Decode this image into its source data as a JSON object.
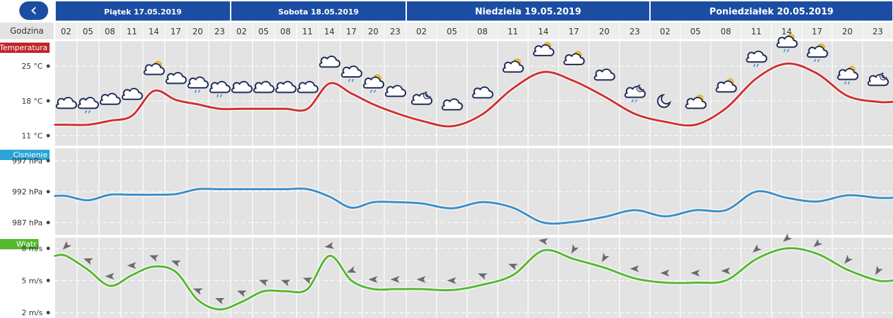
{
  "header": {
    "back_label": "‹",
    "hour_header": "Godzina"
  },
  "days": [
    {
      "label": "Piątek 17.05.2019"
    },
    {
      "label": "Sobota 18.05.2019"
    },
    {
      "label": "Niedziela 19.05.2019"
    },
    {
      "label": "Poniedziałek 20.05.2019"
    }
  ],
  "hours": [
    "02",
    "05",
    "08",
    "11",
    "14",
    "17",
    "20",
    "23"
  ],
  "colors": {
    "day_header": "#1b4ea3",
    "back_button": "#1b4ea3",
    "panel_bg": "#e3e3e3",
    "temperature": "#d03030",
    "pressure": "#3a8fc8",
    "wind": "#55b82e",
    "temp_label": "#c0262a",
    "pressure_label": "#2aa3d8",
    "wind_label": "#55b82e"
  },
  "panels": {
    "temperature": {
      "label": "Temperatura",
      "ticks": [
        "25 °C",
        "18 °C",
        "11 °C"
      ]
    },
    "pressure": {
      "label": "Cisnienie",
      "ticks": [
        "997 hPa",
        "992 hPa",
        "987 hPa"
      ]
    },
    "wind": {
      "label": "Wiatr",
      "ticks": [
        "8 m/s",
        "5 m/s",
        "2 m/s"
      ]
    }
  },
  "chart_data": [
    {
      "type": "line",
      "title": "Temperatura",
      "ylim": [
        9,
        30
      ],
      "ticks": [
        11,
        18,
        25
      ],
      "x": [
        "Pt 02",
        "Pt 05",
        "Pt 08",
        "Pt 11",
        "Pt 14",
        "Pt 17",
        "Pt 20",
        "Pt 23",
        "So 02",
        "So 05",
        "So 08",
        "So 11",
        "So 14",
        "So 17",
        "So 20",
        "So 23",
        "Nd 02",
        "Nd 05",
        "Nd 08",
        "Nd 11",
        "Nd 14",
        "Nd 17",
        "Nd 20",
        "Nd 23",
        "Pn 02",
        "Pn 05",
        "Pn 08",
        "Pn 11",
        "Pn 14",
        "Pn 17",
        "Pn 20",
        "Pn 23"
      ],
      "values": [
        13.2,
        13.2,
        14.0,
        15.0,
        20.0,
        18.2,
        17.3,
        16.4,
        16.4,
        16.4,
        16.4,
        16.4,
        21.5,
        19.5,
        17.3,
        15.6,
        14.0,
        12.9,
        15.3,
        20.5,
        23.8,
        22.0,
        18.9,
        15.4,
        13.8,
        13.2,
        16.5,
        22.5,
        25.5,
        23.5,
        19.0,
        17.8
      ],
      "weather_icons": [
        "cloud",
        "cloud-rain",
        "cloud",
        "cloud",
        "sun-cloud",
        "cloud",
        "cloud-rain",
        "cloud-rain",
        "cloud",
        "cloud",
        "cloud",
        "cloud",
        "cloud",
        "cloud-rain",
        "sun-cloud-rain",
        "cloud",
        "night-cloud",
        "cloud",
        "cloud",
        "sun-cloud",
        "sun-cloud",
        "sun-cloud",
        "cloud",
        "night-cloud-snow",
        "moon",
        "sun-cloud",
        "sun-cloud",
        "cloud-rain",
        "sun-cloud-rain",
        "sun-cloud-rain",
        "sun-cloud-rain",
        "night-cloud"
      ]
    },
    {
      "type": "line",
      "title": "Cisnienie",
      "ylim": [
        985,
        999
      ],
      "ticks": [
        987,
        992,
        997
      ],
      "values": [
        991.3,
        990.6,
        991.5,
        991.5,
        991.5,
        991.6,
        992.4,
        992.4,
        992.4,
        992.4,
        992.4,
        992.4,
        991.2,
        989.4,
        990.3,
        990.3,
        990.1,
        989.3,
        990.3,
        989.4,
        987.0,
        987.1,
        987.9,
        989.0,
        988.0,
        989.0,
        989.0,
        992.0,
        991.0,
        990.4,
        991.4,
        991.0
      ]
    },
    {
      "type": "line",
      "title": "Wiatr",
      "ylim": [
        1.5,
        9
      ],
      "ticks": [
        2,
        5,
        8
      ],
      "values": [
        7.3,
        6.0,
        4.5,
        5.5,
        6.3,
        5.8,
        3.2,
        2.3,
        3.0,
        4.0,
        4.0,
        4.2,
        7.3,
        5.0,
        4.2,
        4.2,
        4.2,
        4.1,
        4.6,
        5.5,
        7.8,
        7.0,
        6.2,
        5.2,
        4.8,
        4.8,
        5.0,
        7.0,
        8.0,
        7.5,
        6.0,
        5.0
      ],
      "wind_arrows_deg": [
        135,
        200,
        180,
        180,
        200,
        200,
        200,
        200,
        200,
        200,
        200,
        200,
        170,
        160,
        180,
        180,
        180,
        180,
        200,
        200,
        190,
        120,
        120,
        180,
        180,
        180,
        180,
        140,
        140,
        140,
        130,
        120
      ]
    }
  ]
}
